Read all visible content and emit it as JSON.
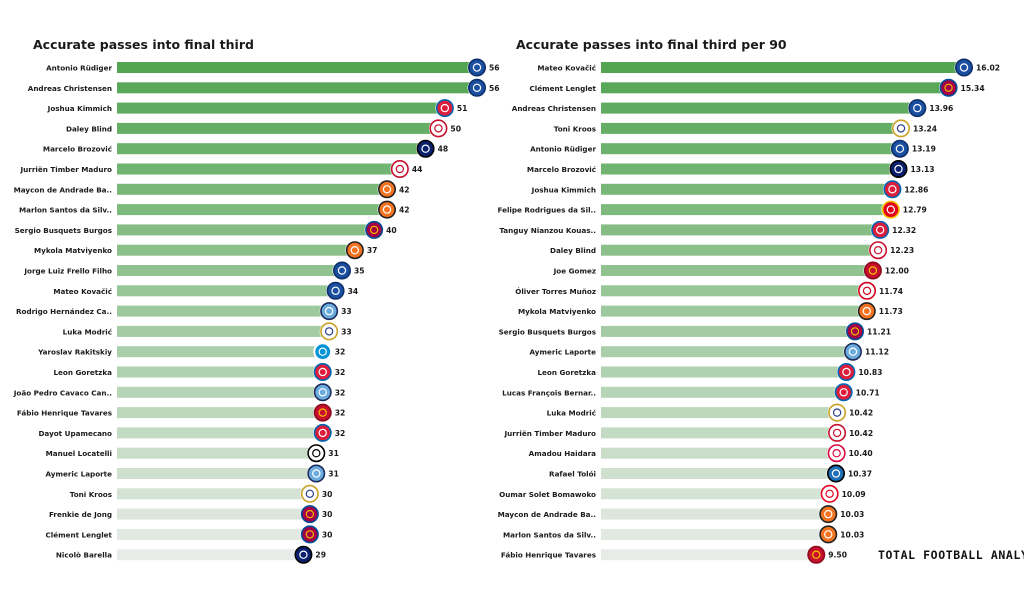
{
  "brand": "TOTAL FOOTBALL ANALYSIS",
  "colors": {
    "high": "#53a553",
    "low": "#e8ece8",
    "label": "#1a1a1a",
    "value": "#1a1a1a"
  },
  "chart_data": [
    {
      "type": "bar",
      "orientation": "horizontal",
      "title": "Accurate passes into final third",
      "xlim": [
        0,
        56
      ],
      "grid": false,
      "legend": "none",
      "categories": [
        "Antonio Rüdiger",
        "Andreas Christensen",
        "Joshua Kimmich",
        "Daley Blind",
        "Marcelo Brozović",
        "Jurriën Timber Maduro",
        "Maycon de Andrade Ba..",
        "Marlon Santos da Silv..",
        "Sergio Busquets Burgos",
        "Mykola Matviyenko",
        "Jorge Luiz Frello Filho",
        "Mateo Kovačić",
        "Rodrigo Hernández Ca..",
        "Luka Modrić",
        "Yaroslav Rakitskiy",
        "Leon  Goretzka",
        "João Pedro Cavaco Can..",
        "Fábio Henrique Tavares",
        "Dayot Upamecano",
        "Manuel Locatelli",
        "Aymeric  Laporte",
        "Toni Kroos",
        "Frenkie de Jong",
        "Clément Lenglet",
        "Nicolò Barella"
      ],
      "values": [
        56,
        56,
        51,
        50,
        48,
        44,
        42,
        42,
        40,
        37,
        35,
        34,
        33,
        33,
        32,
        32,
        32,
        32,
        32,
        31,
        31,
        30,
        30,
        30,
        29
      ],
      "value_labels": [
        "56",
        "56",
        "51",
        "50",
        "48",
        "44",
        "42",
        "42",
        "40",
        "37",
        "35",
        "34",
        "33",
        "33",
        "32",
        "32",
        "32",
        "32",
        "32",
        "31",
        "31",
        "30",
        "30",
        "30",
        "29"
      ],
      "badges": [
        "chelsea",
        "chelsea",
        "bayern",
        "ajax",
        "inter",
        "ajax",
        "shakhtar",
        "shakhtar",
        "barcelona",
        "shakhtar",
        "chelsea",
        "chelsea",
        "man-city",
        "real-madrid",
        "zenit",
        "bayern",
        "man-city",
        "liverpool",
        "bayern",
        "juventus",
        "man-city",
        "real-madrid",
        "barcelona",
        "barcelona",
        "inter"
      ]
    },
    {
      "type": "bar",
      "orientation": "horizontal",
      "title": "Accurate passes into final third per 90",
      "xlim": [
        0,
        16.02
      ],
      "grid": false,
      "legend": "none",
      "categories": [
        "Mateo Kovačić",
        "Clément Lenglet",
        "Andreas Christensen",
        "Toni Kroos",
        "Antonio Rüdiger",
        "Marcelo Brozović",
        "Joshua Kimmich",
        "Felipe Rodrigues da Sil..",
        "Tanguy Nianzou Kouas..",
        "Daley Blind",
        "Joe Gomez",
        "Óliver Torres Muñoz",
        "Mykola Matviyenko",
        "Sergio Busquets Burgos",
        "Aymeric  Laporte",
        "Leon  Goretzka",
        "Lucas François Bernar..",
        "Luka Modrić",
        "Jurriën Timber Maduro",
        "Amadou Haidara",
        "Rafael Tolói",
        "Oumar Solet Bomawoko",
        "Maycon de Andrade Ba..",
        "Marlon Santos da Silv..",
        "Fábio Henrique Tavares"
      ],
      "values": [
        16.02,
        15.34,
        13.96,
        13.24,
        13.19,
        13.13,
        12.86,
        12.79,
        12.32,
        12.23,
        12.0,
        11.74,
        11.73,
        11.21,
        11.12,
        10.83,
        10.71,
        10.42,
        10.42,
        10.4,
        10.37,
        10.09,
        10.03,
        10.03,
        9.5
      ],
      "value_labels": [
        "16.02",
        "15.34",
        "13.96",
        "13.24",
        "13.19",
        "13.13",
        "12.86",
        "12.79",
        "12.32",
        "12.23",
        "12.00",
        "11.74",
        "11.73",
        "11.21",
        "11.12",
        "10.83",
        "10.71",
        "10.42",
        "10.42",
        "10.40",
        "10.37",
        "10.09",
        "10.03",
        "10.03",
        "9.50"
      ],
      "badges": [
        "chelsea",
        "barcelona",
        "chelsea",
        "real-madrid",
        "chelsea",
        "inter",
        "bayern",
        "benfica",
        "bayern",
        "ajax",
        "liverpool",
        "sevilla",
        "shakhtar",
        "barcelona",
        "man-city",
        "bayern",
        "bayern",
        "real-madrid",
        "ajax",
        "leipzig",
        "atalanta",
        "salzburg",
        "shakhtar",
        "shakhtar",
        "liverpool"
      ]
    }
  ]
}
